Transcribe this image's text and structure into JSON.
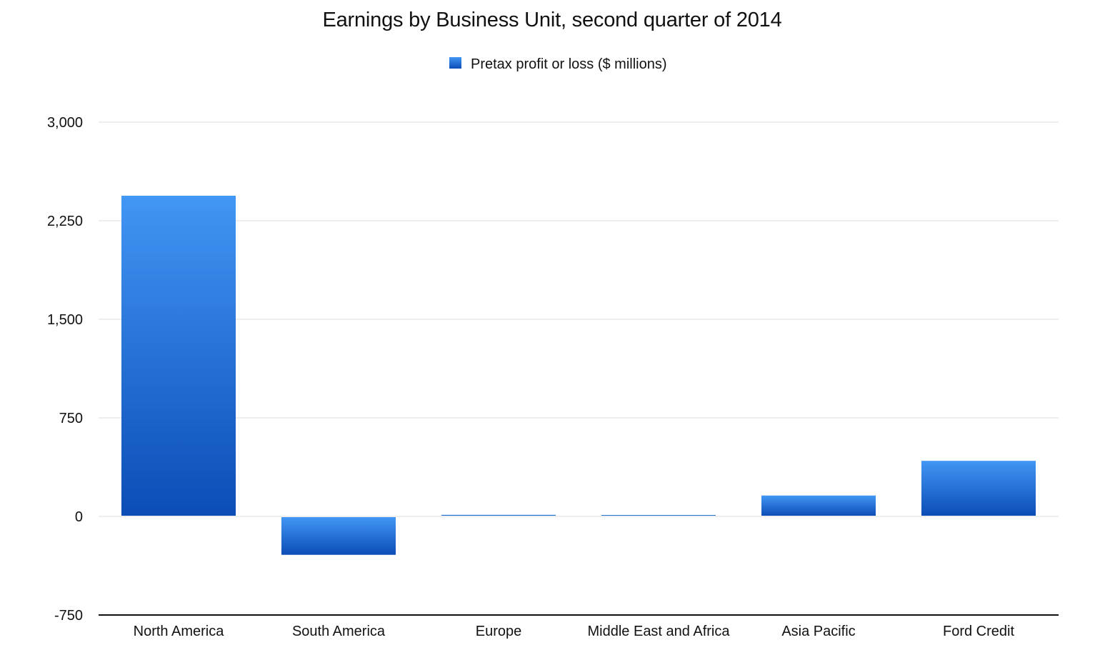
{
  "chart_data": {
    "type": "bar",
    "title": "Earnings by Business Unit, second quarter of 2014",
    "categories": [
      "North America",
      "South America",
      "Europe",
      "Middle East and Africa",
      "Asia Pacific",
      "Ford Credit"
    ],
    "series": [
      {
        "name": "Pretax profit or loss ($ millions)",
        "values": [
          2440,
          -292,
          12,
          11,
          159,
          423
        ]
      }
    ],
    "ylim": [
      -750,
      3000
    ],
    "yticks": [
      -750,
      0,
      750,
      1500,
      2250,
      3000
    ],
    "ytick_labels": [
      "-750",
      "0",
      "750",
      "1,500",
      "2,250",
      "3,000"
    ],
    "xlabel": "",
    "ylabel": "",
    "grid": true,
    "legend_position": "top-center",
    "colors": {
      "bar_top": "#4296f4",
      "bar_bottom": "#0b4db6",
      "grid": "#dcdcdc",
      "axis": "#111111"
    }
  }
}
